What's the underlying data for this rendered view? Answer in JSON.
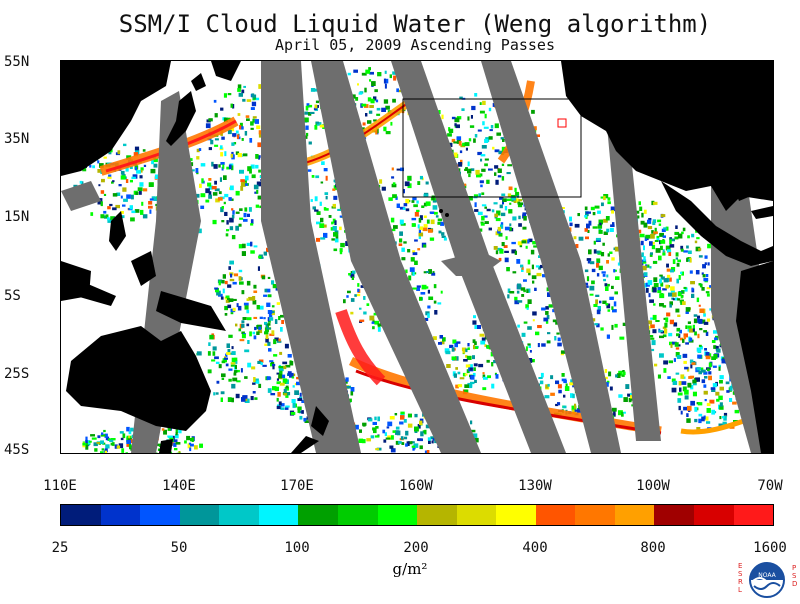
{
  "map": {
    "title": "SSM/I Cloud Liquid Water (Weng algorithm)",
    "subtitle": "April 05, 2009  Ascending Passes",
    "latitude_labels": [
      "55N",
      "35N",
      "15N",
      "5S",
      "25S",
      "45S"
    ],
    "longitude_labels": [
      "110E",
      "140E",
      "170E",
      "160W",
      "130W",
      "100W",
      "70W"
    ],
    "colors": {
      "land": "#000000",
      "no_data_swath_gap": "#6e6e6e",
      "ocean_clear": "#ffffff",
      "region_box": "#000000",
      "site_marker": "#ff0000"
    }
  },
  "colorbar": {
    "colors": [
      "#001c7a",
      "#0033cc",
      "#0055ff",
      "#00969a",
      "#00c8c8",
      "#00f5ff",
      "#00a000",
      "#00cc00",
      "#00ff00",
      "#b5b500",
      "#dcdc00",
      "#ffff00",
      "#ff5500",
      "#ff7700",
      "#ffa000",
      "#a00000",
      "#d80000",
      "#ff1a1a"
    ],
    "tick_labels": [
      "25",
      "50",
      "100",
      "200",
      "400",
      "800",
      "1600"
    ],
    "unit": "g/m²"
  },
  "logo": {
    "left_letters": "ESRL",
    "right_letters": "PSD",
    "name": "NOAA"
  }
}
